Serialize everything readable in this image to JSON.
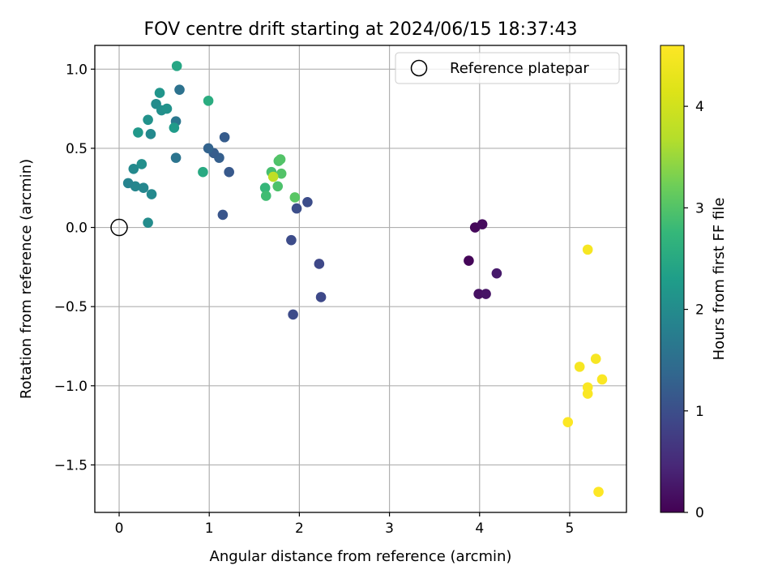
{
  "chart_data": {
    "type": "scatter",
    "title": "FOV centre drift starting at 2024/06/15 18:37:43",
    "xlabel": "Angular distance from reference (arcmin)",
    "ylabel": "Rotation from reference (arcmin)",
    "xlim": [
      -0.27,
      5.63
    ],
    "ylim": [
      -1.8,
      1.15
    ],
    "xticks": [
      0,
      1,
      2,
      3,
      4,
      5
    ],
    "yticks": [
      -1.5,
      -1.0,
      -0.5,
      0.0,
      0.5,
      1.0
    ],
    "xtick_labels": [
      "0",
      "1",
      "2",
      "3",
      "4",
      "5"
    ],
    "ytick_labels": [
      "−1.5",
      "−1.0",
      "−0.5",
      "0.0",
      "0.5",
      "1.0"
    ],
    "grid": true,
    "legend": {
      "placement": "upper right",
      "label": "Reference platepar"
    },
    "reference_point": {
      "x": 0,
      "y": 0
    },
    "colorbar": {
      "label": "Hours from first FF file",
      "colormap": "viridis",
      "range": [
        0,
        4.6
      ],
      "ticks": [
        0,
        1,
        2,
        3,
        4
      ],
      "tick_labels": [
        "0",
        "1",
        "2",
        "3",
        "4"
      ]
    },
    "points": [
      {
        "x": 3.88,
        "y": -0.21,
        "t": 0.05
      },
      {
        "x": 3.95,
        "y": 0.0,
        "t": 0.08
      },
      {
        "x": 4.03,
        "y": 0.02,
        "t": 0.12
      },
      {
        "x": 3.99,
        "y": -0.42,
        "t": 0.18
      },
      {
        "x": 4.07,
        "y": -0.42,
        "t": 0.22
      },
      {
        "x": 4.19,
        "y": -0.29,
        "t": 0.3
      },
      {
        "x": 1.93,
        "y": -0.55,
        "t": 0.95
      },
      {
        "x": 2.24,
        "y": -0.44,
        "t": 0.92
      },
      {
        "x": 2.22,
        "y": -0.23,
        "t": 0.9
      },
      {
        "x": 1.91,
        "y": -0.08,
        "t": 0.97
      },
      {
        "x": 1.97,
        "y": 0.12,
        "t": 1.0
      },
      {
        "x": 2.09,
        "y": 0.16,
        "t": 0.98
      },
      {
        "x": 1.15,
        "y": 0.08,
        "t": 1.1
      },
      {
        "x": 1.22,
        "y": 0.35,
        "t": 1.15
      },
      {
        "x": 1.17,
        "y": 0.57,
        "t": 1.2
      },
      {
        "x": 1.11,
        "y": 0.44,
        "t": 1.25
      },
      {
        "x": 1.05,
        "y": 0.47,
        "t": 1.22
      },
      {
        "x": 0.99,
        "y": 0.5,
        "t": 1.3
      },
      {
        "x": 0.63,
        "y": 0.44,
        "t": 1.6
      },
      {
        "x": 0.67,
        "y": 0.87,
        "t": 1.55
      },
      {
        "x": 0.63,
        "y": 0.67,
        "t": 1.65
      },
      {
        "x": 0.61,
        "y": 0.63,
        "t": 2.25
      },
      {
        "x": 0.32,
        "y": 0.03,
        "t": 2.0
      },
      {
        "x": 0.36,
        "y": 0.21,
        "t": 1.95
      },
      {
        "x": 0.27,
        "y": 0.25,
        "t": 1.9
      },
      {
        "x": 0.18,
        "y": 0.26,
        "t": 1.9
      },
      {
        "x": 0.1,
        "y": 0.28,
        "t": 1.85
      },
      {
        "x": 0.16,
        "y": 0.37,
        "t": 1.95
      },
      {
        "x": 0.25,
        "y": 0.4,
        "t": 2.05
      },
      {
        "x": 0.21,
        "y": 0.6,
        "t": 2.2
      },
      {
        "x": 0.35,
        "y": 0.59,
        "t": 1.95
      },
      {
        "x": 0.32,
        "y": 0.68,
        "t": 2.1
      },
      {
        "x": 0.41,
        "y": 0.78,
        "t": 2.0
      },
      {
        "x": 0.47,
        "y": 0.74,
        "t": 2.05
      },
      {
        "x": 0.53,
        "y": 0.75,
        "t": 2.1
      },
      {
        "x": 0.45,
        "y": 0.85,
        "t": 2.15
      },
      {
        "x": 0.64,
        "y": 1.02,
        "t": 2.45
      },
      {
        "x": 0.99,
        "y": 0.8,
        "t": 2.55
      },
      {
        "x": 0.93,
        "y": 0.35,
        "t": 2.5
      },
      {
        "x": 1.62,
        "y": 0.25,
        "t": 2.75
      },
      {
        "x": 1.63,
        "y": 0.2,
        "t": 2.85
      },
      {
        "x": 1.69,
        "y": 0.35,
        "t": 2.9
      },
      {
        "x": 1.77,
        "y": 0.42,
        "t": 2.95
      },
      {
        "x": 1.79,
        "y": 0.43,
        "t": 3.0
      },
      {
        "x": 1.8,
        "y": 0.34,
        "t": 3.0
      },
      {
        "x": 1.76,
        "y": 0.26,
        "t": 2.95
      },
      {
        "x": 1.95,
        "y": 0.19,
        "t": 3.05
      },
      {
        "x": 1.71,
        "y": 0.32,
        "t": 3.8
      },
      {
        "x": 5.2,
        "y": -0.14,
        "t": 4.5
      },
      {
        "x": 5.11,
        "y": -0.88,
        "t": 4.5
      },
      {
        "x": 5.29,
        "y": -0.83,
        "t": 4.52
      },
      {
        "x": 5.36,
        "y": -0.96,
        "t": 4.55
      },
      {
        "x": 5.2,
        "y": -1.01,
        "t": 4.55
      },
      {
        "x": 5.2,
        "y": -1.05,
        "t": 4.56
      },
      {
        "x": 4.98,
        "y": -1.23,
        "t": 4.58
      },
      {
        "x": 5.32,
        "y": -1.67,
        "t": 4.6
      }
    ]
  }
}
